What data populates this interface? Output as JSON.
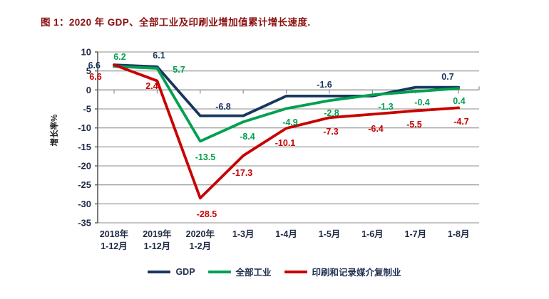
{
  "title": "图 1：2020 年 GDP、全部工业及印刷业增加值累计增长速度.",
  "colors": {
    "title": "#8b0f0f",
    "gridline": "#8c8c8c",
    "axis": "#595959",
    "tick_label": "#1f2a44",
    "gdp": "#17375e",
    "industry": "#00a050",
    "printing": "#c80000"
  },
  "chart_data": {
    "type": "line",
    "title": "图 1：2020 年 GDP、全部工业及印刷业增加值累计增长速度",
    "xlabel": "",
    "ylabel": "增长率%",
    "ylim": [
      -35,
      10
    ],
    "ytick_step": 5,
    "yticks": [
      10,
      5,
      0,
      -5,
      -10,
      -15,
      -20,
      -25,
      -30,
      -35
    ],
    "grid": true,
    "legend_position": "bottom",
    "categories": [
      "2018年\n1-12月",
      "2019年\n1-12月",
      "2020年\n1-2月",
      "1-3月",
      "1-4月",
      "1-5月",
      "1-6月",
      "1-7月",
      "1-8月"
    ],
    "series": [
      {
        "name": "GDP",
        "color": "#17375e",
        "values": [
          6.6,
          6.1,
          -6.8,
          -6.8,
          -1.6,
          -1.6,
          -1.6,
          0.7,
          0.7
        ],
        "labels": [
          {
            "i": 0,
            "t": "6.6"
          },
          {
            "i": 1,
            "t": "6.1"
          },
          {
            "i": 2,
            "t": "-6.8"
          },
          {
            "i": 4,
            "t": "-1.6"
          },
          {
            "i": 7,
            "t": "0.7"
          }
        ]
      },
      {
        "name": "全部工业",
        "color": "#00a050",
        "values": [
          6.2,
          5.7,
          -13.5,
          -8.4,
          -4.9,
          -2.8,
          -1.3,
          -0.4,
          0.4
        ],
        "labels": [
          {
            "i": 0,
            "t": "6.2"
          },
          {
            "i": 1,
            "t": "5.7"
          },
          {
            "i": 2,
            "t": "-13.5"
          },
          {
            "i": 3,
            "t": "-8.4"
          },
          {
            "i": 4,
            "t": "-4.9"
          },
          {
            "i": 5,
            "t": "-2.8"
          },
          {
            "i": 6,
            "t": "-1.3"
          },
          {
            "i": 7,
            "t": "-0.4"
          },
          {
            "i": 8,
            "t": "0.4"
          }
        ]
      },
      {
        "name": "印刷和记录媒介复制业",
        "color": "#c80000",
        "values": [
          6.6,
          2.4,
          -28.5,
          -17.3,
          -10.1,
          -7.3,
          -6.4,
          -5.5,
          -4.7
        ],
        "labels": [
          {
            "i": 0,
            "t": "6.6"
          },
          {
            "i": 1,
            "t": "2.4"
          },
          {
            "i": 2,
            "t": "-28.5"
          },
          {
            "i": 3,
            "t": "-17.3"
          },
          {
            "i": 4,
            "t": "-10.1"
          },
          {
            "i": 5,
            "t": "-7.3"
          },
          {
            "i": 6,
            "t": "-6.4"
          },
          {
            "i": 7,
            "t": "-5.5"
          },
          {
            "i": 8,
            "t": "-4.7"
          }
        ]
      }
    ]
  }
}
